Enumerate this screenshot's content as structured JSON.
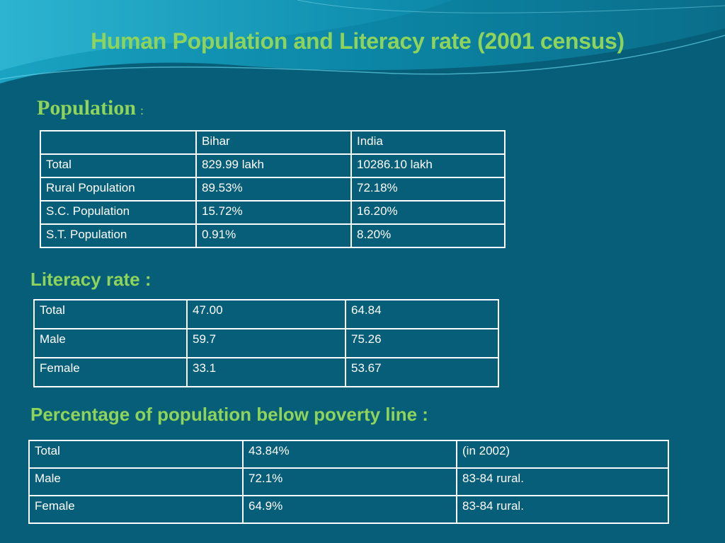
{
  "slide": {
    "title": "Human Population and Literacy rate (2001 census)",
    "colors": {
      "background": "#075e78",
      "heading": "#8ed45a",
      "table_border": "#ffffff"
    }
  },
  "population": {
    "heading": "Population",
    "heading_colon": ":",
    "header": [
      "",
      "Bihar",
      "India"
    ],
    "rows": [
      [
        "Total",
        "829.99 lakh",
        "10286.10 lakh"
      ],
      [
        "Rural Population",
        "89.53%",
        "72.18%"
      ],
      [
        "S.C. Population",
        "15.72%",
        "16.20%"
      ],
      [
        "S.T. Population",
        "0.91%",
        "8.20%"
      ]
    ]
  },
  "literacy": {
    "heading": "Literacy rate :",
    "rows": [
      [
        "Total",
        "47.00",
        "64.84"
      ],
      [
        "Male",
        "59.7",
        "75.26"
      ],
      [
        "Female",
        "33.1",
        "53.67"
      ]
    ]
  },
  "poverty": {
    "heading": "Percentage of population below poverty line :",
    "rows": [
      [
        "Total",
        "43.84%",
        "(in 2002)"
      ],
      [
        "Male",
        "72.1%",
        "83-84 rural."
      ],
      [
        "Female",
        "64.9%",
        "83-84 rural."
      ]
    ]
  }
}
